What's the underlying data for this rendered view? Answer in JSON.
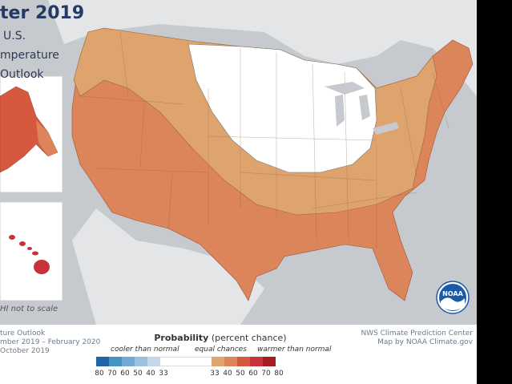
{
  "title": {
    "main": "ter 2019",
    "lines": [
      "U.S.",
      "mperature",
      "Outlook"
    ]
  },
  "inset_note": "HI not to scale",
  "footer_left": [
    "ture Outlook",
    "mber 2019 – February 2020",
    "October 2019"
  ],
  "footer_right": [
    "NWS Climate Prediction Center",
    "Map by NOAA Climate.gov"
  ],
  "legend": {
    "title_bold": "Probability",
    "title_rest": " (percent chance)",
    "cooler_label": "cooler than normal",
    "equal_label": "equal chances",
    "warmer_label": "warmer than normal",
    "cool_ticks": [
      "80",
      "70",
      "60",
      "50",
      "40",
      "33"
    ],
    "warm_ticks": [
      "33",
      "40",
      "50",
      "60",
      "70",
      "80"
    ],
    "cool_colors": [
      "#2166ac",
      "#4393c3",
      "#72a8d4",
      "#9cc1e0",
      "#c4d6ea"
    ],
    "equal_color": "#ffffff",
    "warm_colors": [
      "#dfa46e",
      "#dc845a",
      "#d4593f",
      "#c8323a",
      "#a51d22"
    ]
  },
  "logo_text": "NOAA",
  "regions": [
    {
      "id": "warm-40-50",
      "probability": "40-50% warmer",
      "color": "#dc845a"
    },
    {
      "id": "warm-33-40",
      "probability": "33-40% warmer",
      "color": "#dfa46e"
    },
    {
      "id": "equal",
      "probability": "equal chances",
      "color": "#ffffff"
    },
    {
      "id": "alaska-warm",
      "probability": "50-60% warmer",
      "color": "#d4593f"
    },
    {
      "id": "hawaii-warm",
      "probability": "60-70% warmer",
      "color": "#c8323a"
    }
  ]
}
